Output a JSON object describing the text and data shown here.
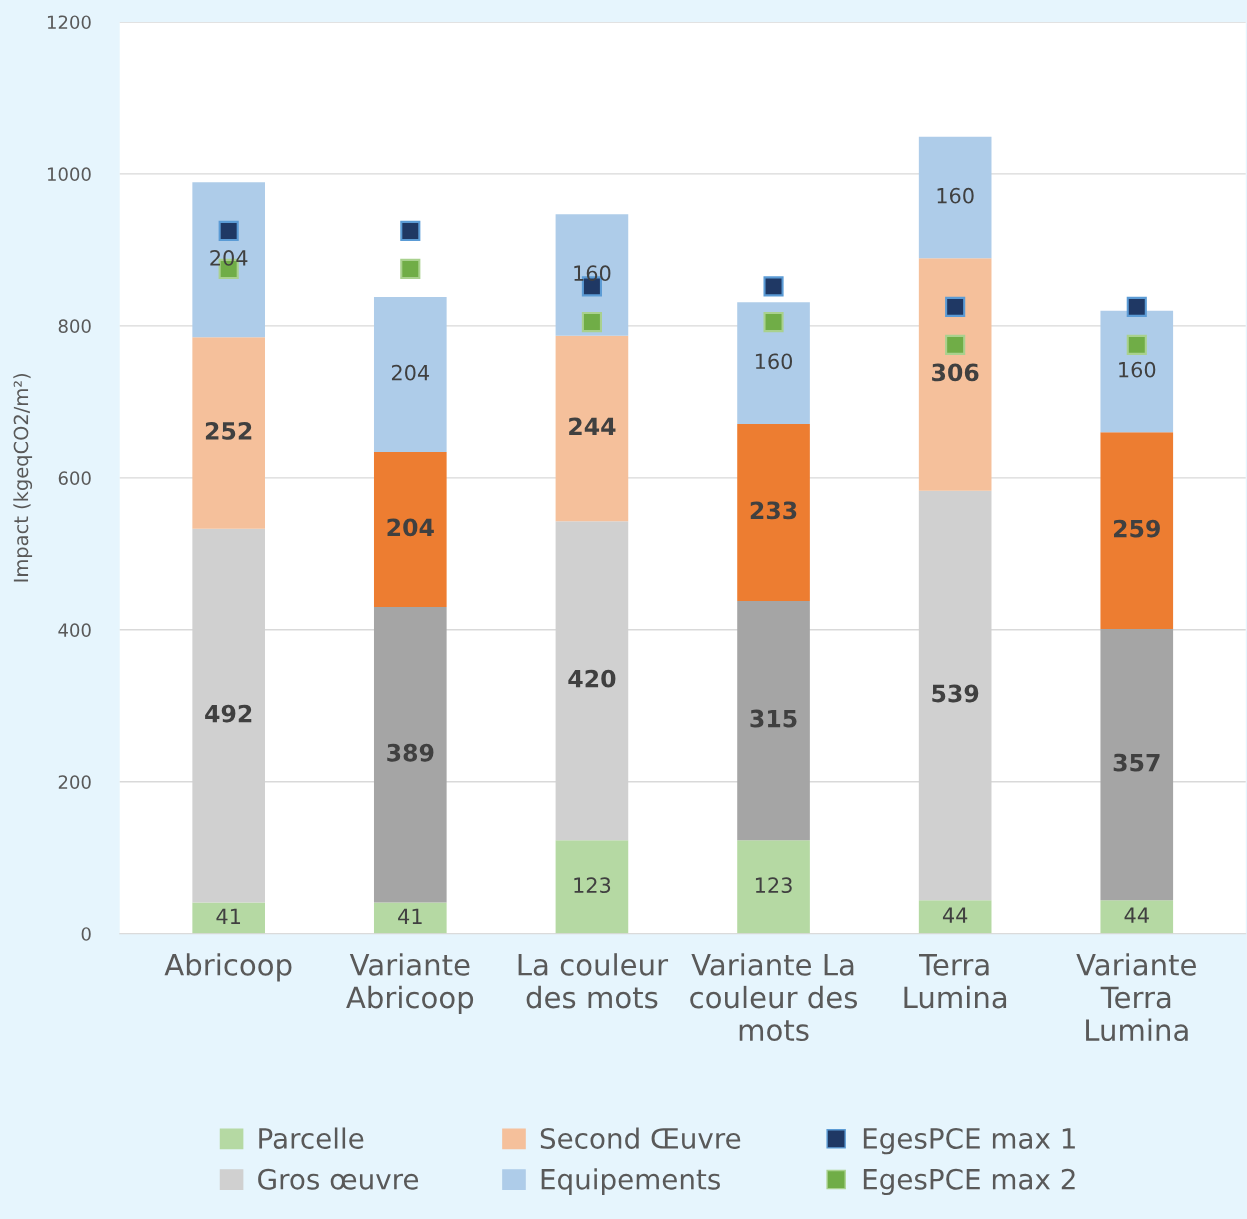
{
  "chart_data": {
    "type": "bar",
    "stacked": true,
    "ylabel": "Impact (kgeqCO2/m²)",
    "categories": [
      "Abricoop",
      "Variante Abricoop",
      "La couleur des mots",
      "Variante La couleur des mots",
      "Terra Lumina",
      "Variante Terra Lumina"
    ],
    "series": [
      {
        "name": "Parcelle",
        "color": "#b5d9a3",
        "colors": [
          "#b5d9a3",
          "#b5d9a3",
          "#b5d9a3",
          "#b5d9a3",
          "#b5d9a3",
          "#b5d9a3"
        ],
        "values": [
          41,
          41,
          123,
          123,
          44,
          44
        ],
        "value_labels": [
          "41",
          "41",
          "123",
          "123",
          "44",
          "44"
        ]
      },
      {
        "name": "Gros œuvre",
        "color": "#d0d0d0",
        "colors": [
          "#d0d0d0",
          "#a5a5a5",
          "#d0d0d0",
          "#a5a5a5",
          "#d0d0d0",
          "#a5a5a5"
        ],
        "values": [
          492,
          389,
          420,
          315,
          539,
          357
        ],
        "value_labels": [
          "492",
          "389",
          "420",
          "315",
          "539",
          "357"
        ]
      },
      {
        "name": "Second Œuvre",
        "color": "#f5c09b",
        "colors": [
          "#f5c09b",
          "#ed7d31",
          "#f5c09b",
          "#ed7d31",
          "#f5c09b",
          "#ed7d31"
        ],
        "values": [
          252,
          204,
          244,
          233,
          306,
          259
        ],
        "value_labels": [
          "252",
          "204",
          "244",
          "233",
          "306",
          "259"
        ]
      },
      {
        "name": "Equipements",
        "color": "#aecce9",
        "colors": [
          "#aecce9",
          "#aecce9",
          "#aecce9",
          "#aecce9",
          "#aecce9",
          "#aecce9"
        ],
        "values": [
          204,
          204,
          160,
          160,
          160,
          160
        ],
        "value_labels": [
          "204",
          "204",
          "160",
          "160",
          "160",
          "160"
        ]
      },
      {
        "name": "EgesPCE max 1",
        "type": "scatter",
        "color": "#1f3864",
        "values": [
          925,
          925,
          852,
          852,
          825,
          825
        ]
      },
      {
        "name": "EgesPCE max 2",
        "type": "scatter",
        "color": "#70ad47",
        "values": [
          875,
          875,
          805,
          805,
          775,
          775
        ]
      }
    ],
    "ylim": [
      0,
      1200
    ],
    "yticks": [
      0,
      200,
      400,
      600,
      800,
      1000,
      1200
    ],
    "grid": "y",
    "legend": "bottom",
    "marker": "square"
  }
}
